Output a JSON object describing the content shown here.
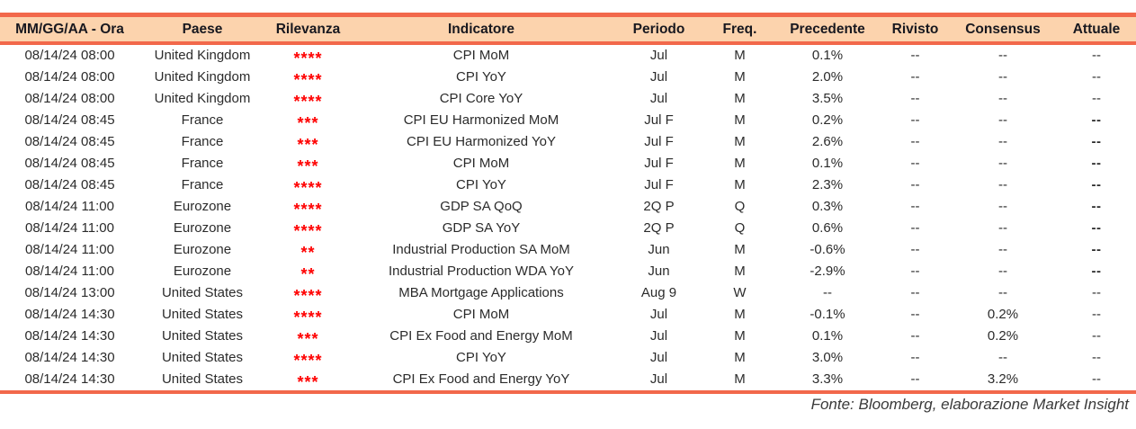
{
  "colors": {
    "accent": "#F2684B",
    "header_bg": "#FCD3AD",
    "star_red": "#FF0000"
  },
  "table": {
    "columns": [
      "MM/GG/AA - Ora",
      "Paese",
      "Rilevanza",
      "Indicatore",
      "Periodo",
      "Freq.",
      "Precedente",
      "Rivisto",
      "Consensus",
      "Attuale"
    ],
    "rows": [
      {
        "datetime": "08/14/24 08:00",
        "country": "United Kingdom",
        "relevance": "****",
        "indicator": "CPI MoM",
        "period": "Jul",
        "freq": "M",
        "previous": "0.1%",
        "revised": "--",
        "consensus": "--",
        "actual": "--",
        "actual_bold": false
      },
      {
        "datetime": "08/14/24 08:00",
        "country": "United Kingdom",
        "relevance": "****",
        "indicator": "CPI YoY",
        "period": "Jul",
        "freq": "M",
        "previous": "2.0%",
        "revised": "--",
        "consensus": "--",
        "actual": "--",
        "actual_bold": false
      },
      {
        "datetime": "08/14/24 08:00",
        "country": "United Kingdom",
        "relevance": "****",
        "indicator": "CPI Core YoY",
        "period": "Jul",
        "freq": "M",
        "previous": "3.5%",
        "revised": "--",
        "consensus": "--",
        "actual": "--",
        "actual_bold": false
      },
      {
        "datetime": "08/14/24 08:45",
        "country": "France",
        "relevance": "***",
        "indicator": "CPI EU Harmonized MoM",
        "period": "Jul F",
        "freq": "M",
        "previous": "0.2%",
        "revised": "--",
        "consensus": "--",
        "actual": "--",
        "actual_bold": true
      },
      {
        "datetime": "08/14/24 08:45",
        "country": "France",
        "relevance": "***",
        "indicator": "CPI EU Harmonized YoY",
        "period": "Jul F",
        "freq": "M",
        "previous": "2.6%",
        "revised": "--",
        "consensus": "--",
        "actual": "--",
        "actual_bold": true
      },
      {
        "datetime": "08/14/24 08:45",
        "country": "France",
        "relevance": "***",
        "indicator": "CPI MoM",
        "period": "Jul F",
        "freq": "M",
        "previous": "0.1%",
        "revised": "--",
        "consensus": "--",
        "actual": "--",
        "actual_bold": true
      },
      {
        "datetime": "08/14/24 08:45",
        "country": "France",
        "relevance": "****",
        "indicator": "CPI YoY",
        "period": "Jul F",
        "freq": "M",
        "previous": "2.3%",
        "revised": "--",
        "consensus": "--",
        "actual": "--",
        "actual_bold": true
      },
      {
        "datetime": "08/14/24 11:00",
        "country": "Eurozone",
        "relevance": "****",
        "indicator": "GDP SA QoQ",
        "period": "2Q P",
        "freq": "Q",
        "previous": "0.3%",
        "revised": "--",
        "consensus": "--",
        "actual": "--",
        "actual_bold": true
      },
      {
        "datetime": "08/14/24 11:00",
        "country": "Eurozone",
        "relevance": "****",
        "indicator": "GDP SA YoY",
        "period": "2Q P",
        "freq": "Q",
        "previous": "0.6%",
        "revised": "--",
        "consensus": "--",
        "actual": "--",
        "actual_bold": true
      },
      {
        "datetime": "08/14/24 11:00",
        "country": "Eurozone",
        "relevance": "**",
        "indicator": "Industrial Production SA MoM",
        "period": "Jun",
        "freq": "M",
        "previous": "-0.6%",
        "revised": "--",
        "consensus": "--",
        "actual": "--",
        "actual_bold": true
      },
      {
        "datetime": "08/14/24 11:00",
        "country": "Eurozone",
        "relevance": "**",
        "indicator": "Industrial Production WDA YoY",
        "period": "Jun",
        "freq": "M",
        "previous": "-2.9%",
        "revised": "--",
        "consensus": "--",
        "actual": "--",
        "actual_bold": true
      },
      {
        "datetime": "08/14/24 13:00",
        "country": "United States",
        "relevance": "****",
        "indicator": "MBA Mortgage Applications",
        "period": "Aug 9",
        "freq": "W",
        "previous": "--",
        "revised": "--",
        "consensus": "--",
        "actual": "--",
        "actual_bold": false
      },
      {
        "datetime": "08/14/24 14:30",
        "country": "United States",
        "relevance": "****",
        "indicator": "CPI MoM",
        "period": "Jul",
        "freq": "M",
        "previous": "-0.1%",
        "revised": "--",
        "consensus": "0.2%",
        "actual": "--",
        "actual_bold": false
      },
      {
        "datetime": "08/14/24 14:30",
        "country": "United States",
        "relevance": "***",
        "indicator": "CPI Ex Food and Energy MoM",
        "period": "Jul",
        "freq": "M",
        "previous": "0.1%",
        "revised": "--",
        "consensus": "0.2%",
        "actual": "--",
        "actual_bold": false
      },
      {
        "datetime": "08/14/24 14:30",
        "country": "United States",
        "relevance": "****",
        "indicator": "CPI YoY",
        "period": "Jul",
        "freq": "M",
        "previous": "3.0%",
        "revised": "--",
        "consensus": "--",
        "actual": "--",
        "actual_bold": false
      },
      {
        "datetime": "08/14/24 14:30",
        "country": "United States",
        "relevance": "***",
        "indicator": "CPI Ex Food and Energy YoY",
        "period": "Jul",
        "freq": "M",
        "previous": "3.3%",
        "revised": "--",
        "consensus": "3.2%",
        "actual": "--",
        "actual_bold": false
      }
    ]
  },
  "footer": {
    "source": "Fonte: Bloomberg, elaborazione Market Insight"
  }
}
